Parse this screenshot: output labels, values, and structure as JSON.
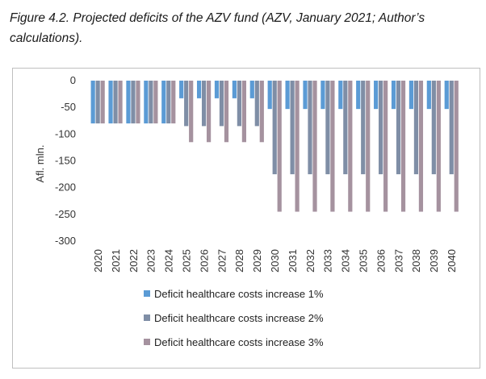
{
  "caption": "Figure 4.2. Projected deficits of the AZV fund (AZV, January 2021; Author’s calculations).",
  "colors": {
    "s1": "#5b9bd5",
    "s2": "#7f8ea6",
    "s3": "#a5929f"
  },
  "chart_data": {
    "type": "bar",
    "title": "",
    "xlabel": "",
    "ylabel": "Afl. mln.",
    "ylim": [
      -300,
      0
    ],
    "yticks": [
      "0",
      "-50",
      "-100",
      "-150",
      "-200",
      "-250",
      "-300"
    ],
    "ytick_values": [
      0,
      -50,
      -100,
      -150,
      -200,
      -250,
      -300
    ],
    "grid": false,
    "legend_position": "bottom",
    "categories": [
      "2020",
      "2021",
      "2022",
      "2023",
      "2024",
      "2025",
      "2026",
      "2027",
      "2028",
      "2029",
      "2030",
      "2031",
      "2032",
      "2033",
      "2034",
      "2035",
      "2036",
      "2037",
      "2038",
      "2039",
      "2040"
    ],
    "series": [
      {
        "name": "Deficit healthcare costs increase 1%",
        "values": [
          -80,
          -80,
          -80,
          -80,
          -80,
          -33,
          -33,
          -33,
          -33,
          -33,
          -53,
          -53,
          -53,
          -53,
          -53,
          -53,
          -53,
          -53,
          -53,
          -53,
          -53
        ]
      },
      {
        "name": "Deficit healthcare costs increase 2%",
        "values": [
          -80,
          -80,
          -80,
          -80,
          -80,
          -85,
          -85,
          -85,
          -85,
          -85,
          -175,
          -175,
          -175,
          -175,
          -175,
          -175,
          -175,
          -175,
          -175,
          -175,
          -175
        ]
      },
      {
        "name": "Deficit healthcare costs increase 3%",
        "values": [
          -80,
          -80,
          -80,
          -80,
          -80,
          -115,
          -115,
          -115,
          -115,
          -115,
          -245,
          -245,
          -245,
          -245,
          -245,
          -245,
          -245,
          -245,
          -245,
          -245,
          -245
        ]
      }
    ]
  }
}
